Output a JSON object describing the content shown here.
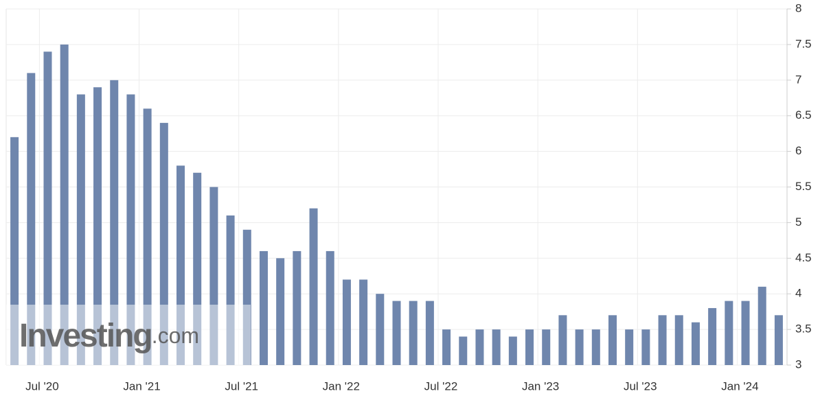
{
  "chart_data": {
    "type": "bar",
    "categories": [
      null,
      null,
      "Jul '20",
      null,
      null,
      null,
      null,
      null,
      "Jan '21",
      null,
      null,
      null,
      null,
      null,
      "Jul '21",
      null,
      null,
      null,
      null,
      null,
      "Jan '22",
      null,
      null,
      null,
      null,
      null,
      "Jul '22",
      null,
      null,
      null,
      null,
      null,
      "Jan '23",
      null,
      null,
      null,
      null,
      null,
      "Jul '23",
      null,
      null,
      null,
      null,
      null,
      "Jan '24",
      null,
      null
    ],
    "values": [
      6.2,
      7.1,
      7.4,
      7.5,
      6.8,
      6.9,
      7.0,
      6.8,
      6.6,
      6.4,
      5.8,
      5.7,
      5.5,
      5.1,
      4.9,
      4.6,
      4.5,
      4.6,
      5.2,
      4.6,
      4.2,
      4.2,
      4.0,
      3.9,
      3.9,
      3.9,
      3.5,
      3.4,
      3.5,
      3.5,
      3.4,
      3.5,
      3.5,
      3.7,
      3.5,
      3.5,
      3.7,
      3.5,
      3.5,
      3.7,
      3.7,
      3.6,
      3.8,
      3.9,
      3.9,
      4.1,
      3.7
    ],
    "color": "#6f86ad",
    "ylim": [
      3,
      8
    ],
    "yticks": [
      3,
      3.5,
      4,
      4.5,
      5,
      5.5,
      6,
      6.5,
      7,
      7.5,
      8
    ],
    "grid": true,
    "watermark": {
      "brand": "Investing",
      "suffix": ".com"
    }
  }
}
